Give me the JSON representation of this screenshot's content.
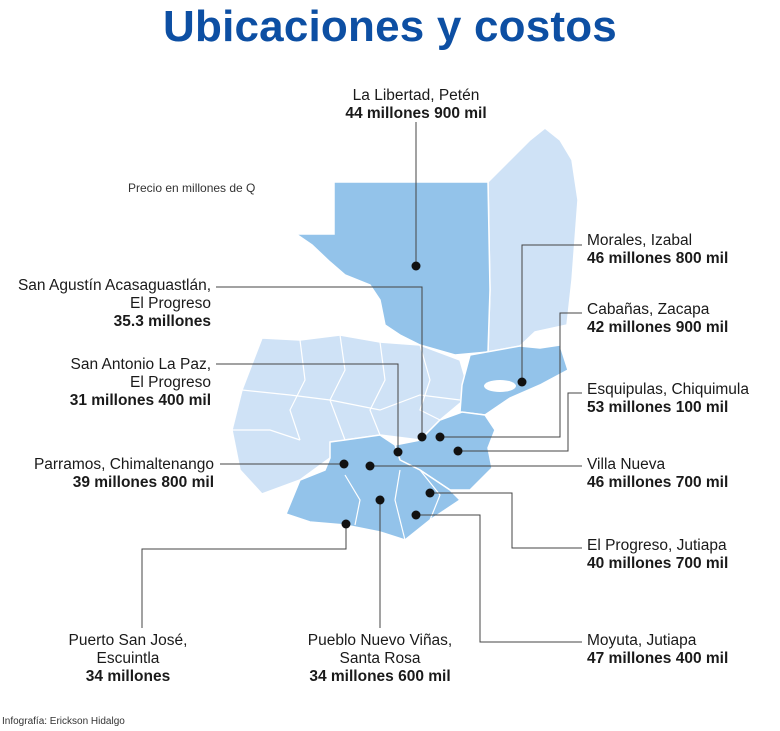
{
  "title": "Ubicaciones y costos",
  "subtitle": "Precio en millones de Q",
  "credit": "Infografía: Erickson Hidalgo",
  "colors": {
    "title": "#0d4fa3",
    "region_dark": "#93c3ea",
    "region_light": "#cfe2f6",
    "border": "#ffffff",
    "leader": "#444444",
    "marker": "#111111"
  },
  "locations": [
    {
      "place": "La Libertad, Petén",
      "price": "44 millones 900 mil"
    },
    {
      "place": "Morales, Izabal",
      "price": "46 millones 800 mil"
    },
    {
      "place": "Cabañas, Zacapa",
      "price": "42 millones 900 mil"
    },
    {
      "place": "Esquipulas, Chiquimula",
      "price": "53 millones 100 mil"
    },
    {
      "place": "Villa Nueva",
      "price": "46 millones 700 mil"
    },
    {
      "place": "El Progreso, Jutiapa",
      "price": "40 millones 700 mil"
    },
    {
      "place": "Moyuta, Jutiapa",
      "price": "47 millones 400 mil"
    },
    {
      "place": "Pueblo Nuevo Viñas, Santa Rosa",
      "price": "34 millones 600 mil"
    },
    {
      "place": "Puerto San José, Escuintla",
      "price": "34 millones"
    },
    {
      "place": "Parramos, Chimaltenango",
      "price": "39 millones 800 mil"
    },
    {
      "place": "San Antonio La Paz, El Progreso",
      "price": "31 millones 400 mil"
    },
    {
      "place": "San Agustín Acasaguastlán, El Progreso",
      "price": "35.3 millones"
    }
  ]
}
